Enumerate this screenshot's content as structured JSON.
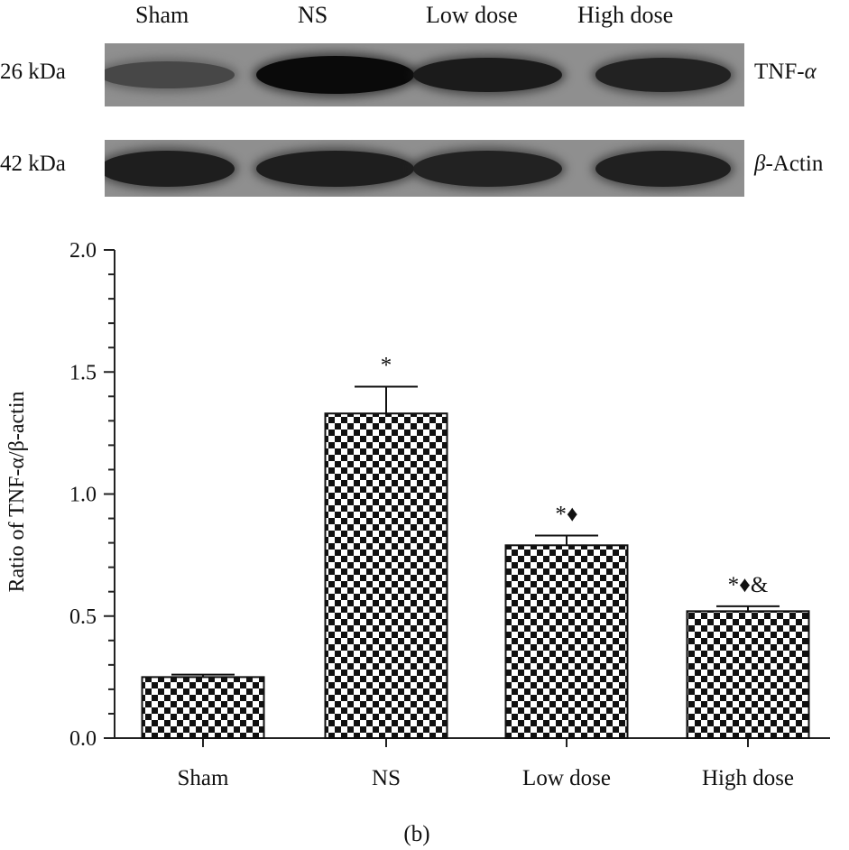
{
  "blot": {
    "lanes": [
      "Sham",
      "NS",
      "Low dose",
      "High dose"
    ],
    "rows": [
      {
        "kda": "26 kDa",
        "protein": "TNF-",
        "protein_greek": "α",
        "intensity": [
          0.45,
          1.0,
          0.85,
          0.78
        ]
      },
      {
        "kda": "42 kDa",
        "protein": "-Actin",
        "protein_greek": "β",
        "intensity": [
          0.82,
          0.82,
          0.78,
          0.8
        ]
      }
    ]
  },
  "chart_data": {
    "type": "bar",
    "categories": [
      "Sham",
      "NS",
      "Low dose",
      "High dose"
    ],
    "values": [
      0.25,
      1.33,
      0.79,
      0.52
    ],
    "errors": [
      0.01,
      0.11,
      0.04,
      0.02
    ],
    "annotations": [
      "",
      "*",
      "*♦",
      "*♦&"
    ],
    "ylabel": "Ratio of TNF-α/β-actin",
    "ylim": [
      0,
      2.0
    ],
    "yticks": [
      "0.0",
      "0.5",
      "1.0",
      "1.5",
      "2.0"
    ],
    "bar_pattern": "checkerboard",
    "colors": {
      "bar_dark": "#111111",
      "bar_light": "#ffffff",
      "axis": "#222222"
    }
  },
  "panel_label": "(b)"
}
